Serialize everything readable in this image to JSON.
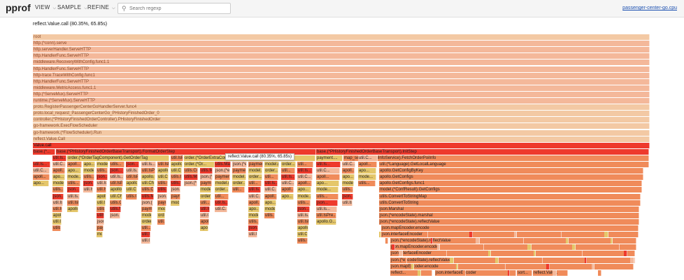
{
  "app": {
    "logo": "pprof",
    "profile_link": "passenger-center-go.cpu"
  },
  "menu": {
    "view": "VIEW",
    "sample": "SAMPLE",
    "refine": "REFINE"
  },
  "search": {
    "placeholder": "Search regexp"
  },
  "status": "reflect.Value.call (80.35%, 65.85s)",
  "tooltip": "reflect.Value.call (80.35%, 65.85s)",
  "colors": {
    "light": "#f3c9a4",
    "mid": "#f4b89a",
    "highlight": "#ee3a2c",
    "yellow": "#e5c76b",
    "orange": "#f08b5a"
  },
  "stack_frames": [
    "root",
    "http.(*conn).serve",
    "http.serverHandler.ServeHTTP",
    "http.HandlerFunc.ServeHTTP",
    "middleware.RecoveryWithConfig.func1.1",
    "http.HandlerFunc.ServeHTTP",
    "http-trace.TraceWithConfig.func1",
    "http.HandlerFunc.ServeHTTP",
    "middleware.MetricAccess.func1.1",
    "http.(*ServeMux).ServeHTTP",
    "runtime.(*ServeMux).ServeHTTP",
    "proto.RegisterPassengerCenterGoHandlerServer.func4",
    "proto.local_request_PassengerCenterGo_PHistoryFinishedOrder_0",
    "controller.(*PHistoryFinishedOrderController).PHistoryFinishedOrder",
    "go-framework.ExecFlowScheduler",
    "go-framework.(*FlowScheduler).Run",
    "reflect.Value.Call",
    "Value.call"
  ],
  "branches": [
    {
      "label": "base.(*...",
      "row": 0
    },
    {
      "label": "base.(*PHistoryFinishedOrderBaseTransport).FormatOrderStep",
      "row": 0
    },
    {
      "label": "base.(*PHistoryFinishedOrderBaseTransport).InitStep",
      "row": 0
    },
    {
      "label": "order.(*OrderTagComponent).GetOrderTag",
      "row": 1
    },
    {
      "label": "order.(*OrderExtraComponent).GetFinishedData",
      "row": 1
    },
    {
      "label": "payment....",
      "row": 1
    },
    {
      "label": "map_service.(*PoiInfoService).FetchOrderPoiInfo",
      "row": 1
    },
    {
      "label": "order.(*Or...",
      "row": 2
    },
    {
      "label": "util.(*Language).GetLocalLanguage",
      "row": 2
    },
    {
      "label": "apollo.GetConfigByKey",
      "row": 3
    },
    {
      "label": "apollo.GetConfigs",
      "row": 4
    },
    {
      "label": "apollo.GetConfigs.func1",
      "row": 5
    },
    {
      "label": "model.(*ConfResult).GetConfigs",
      "row": 6
    },
    {
      "label": "utils.ConvertToStringMap",
      "row": 7
    },
    {
      "label": "utils.ConvertToString",
      "row": 8
    },
    {
      "label": "json.Marshal",
      "row": 9
    },
    {
      "label": "json.(*encodeState).marshal",
      "row": 10
    },
    {
      "label": "json.(*encodeState).reflectValue",
      "row": 11
    },
    {
      "label": "json.mapEncoder.encode",
      "row": 12
    },
    {
      "label": "json.interfaceEncoder",
      "row": 13
    },
    {
      "label": "json.(*encodeState).reflectValue",
      "row": 14
    },
    {
      "label": "json.mapEncoder.encode",
      "row": 15
    },
    {
      "label": "json.interfaceEncoder",
      "row": 16
    },
    {
      "label": "json.(*encodeState).reflectValue",
      "row": 17
    },
    {
      "label": "json.mapEncoder.encode",
      "row": 18
    },
    {
      "label": "reflect...",
      "row": 19
    },
    {
      "label": "json.interfaceEncoder",
      "row": 19
    },
    {
      "label": "sort...",
      "row": 19
    },
    {
      "label": "reflect.Valu...",
      "row": 19
    }
  ],
  "small_labels": [
    "order...",
    "util...",
    "util.Is...",
    "util.C...",
    "apoll...",
    "apo...",
    "mode...",
    "utils...",
    "json...",
    "util.Is...",
    "util.IsPre...",
    "apollo.G...",
    "util.Chec...",
    "utils.Con...",
    "utils.Mar...",
    "json.(*e...",
    "payment...",
    "model.(*..."
  ]
}
